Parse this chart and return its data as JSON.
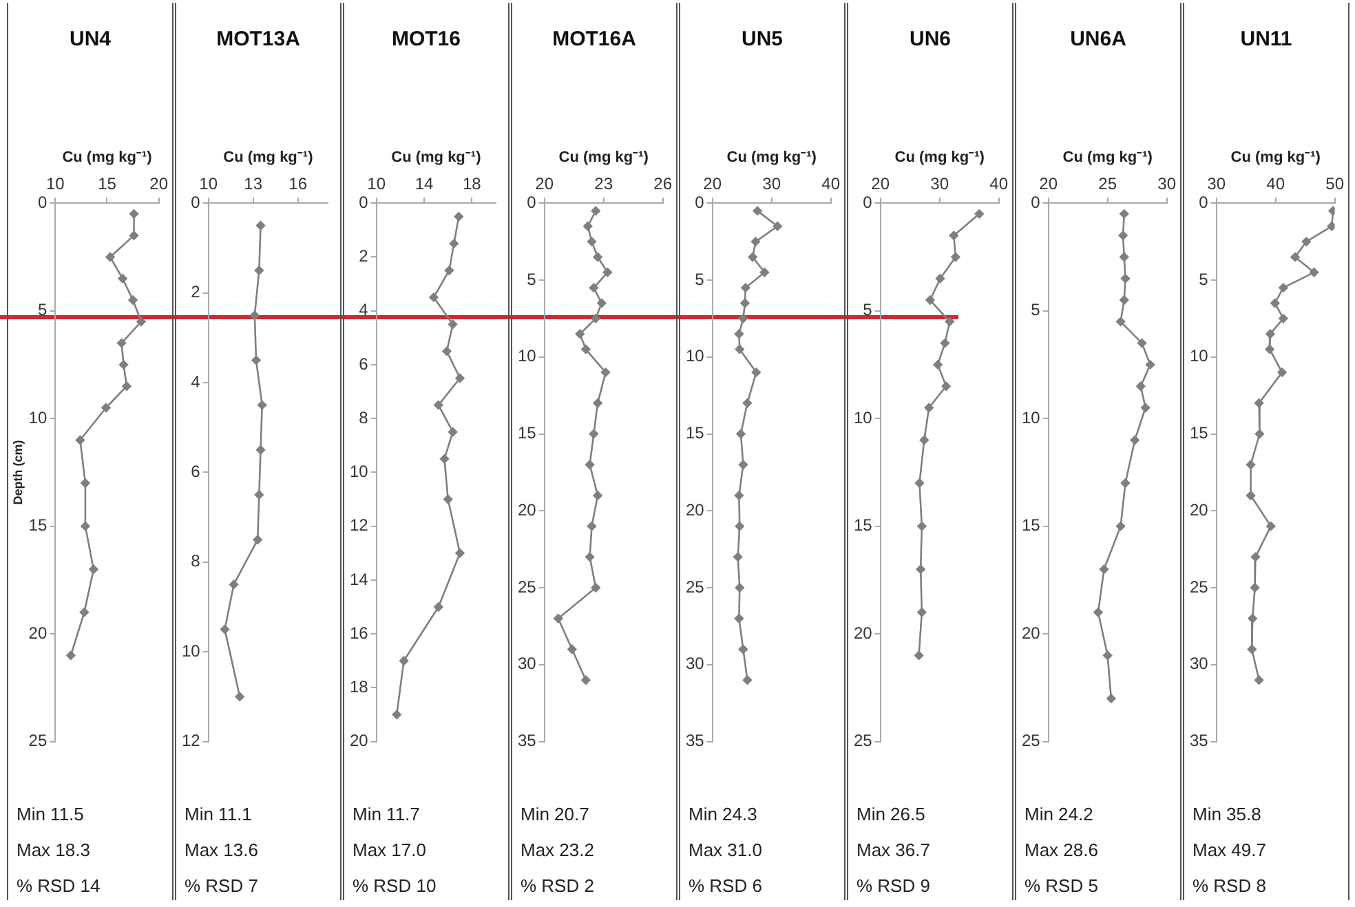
{
  "chart_data": [
    {
      "type": "line",
      "title": "UN4",
      "xlabel": "Cu (mg kg⁻¹)",
      "ylabel": "Depth (cm)",
      "marker": "diamond",
      "grid": false,
      "xlim": [
        10,
        20
      ],
      "xticks": [
        10,
        15,
        20
      ],
      "ylim": [
        25,
        0
      ],
      "yticks": [
        0,
        5,
        10,
        15,
        20,
        25
      ],
      "series": [
        {
          "color": "#7f7f7f",
          "x": [
            17.6,
            17.6,
            15.3,
            16.5,
            17.5,
            18.3,
            16.4,
            16.6,
            16.9,
            14.9,
            12.4,
            12.9,
            12.9,
            13.7,
            12.8,
            11.5
          ],
          "values": [
            0.5,
            1.5,
            2.5,
            3.5,
            4.5,
            5.5,
            6.5,
            7.5,
            8.5,
            9.5,
            11,
            13,
            15,
            17,
            19,
            21
          ]
        }
      ],
      "annotations": [
        "Min 11.5",
        "Max 18.3",
        "% RSD 14"
      ]
    },
    {
      "type": "line",
      "title": "MOT13A",
      "xlabel": "Cu (mg kg⁻¹)",
      "marker": "diamond",
      "grid": false,
      "xlim": [
        10,
        18
      ],
      "xticks": [
        10,
        13,
        16
      ],
      "ylim": [
        12,
        0
      ],
      "yticks": [
        0,
        2,
        4,
        6,
        8,
        10,
        12
      ],
      "series": [
        {
          "color": "#7f7f7f",
          "x": [
            13.5,
            13.4,
            13.1,
            13.2,
            13.6,
            13.5,
            13.4,
            13.3,
            11.7,
            11.1,
            12.1
          ],
          "values": [
            0.5,
            1.5,
            2.5,
            3.5,
            4.5,
            5.5,
            6.5,
            7.5,
            8.5,
            9.5,
            11
          ]
        }
      ],
      "annotations": [
        "Min 11.1",
        "Max 13.6",
        "% RSD 7"
      ]
    },
    {
      "type": "line",
      "title": "MOT16",
      "xlabel": "Cu (mg kg⁻¹)",
      "marker": "diamond",
      "grid": false,
      "xlim": [
        10,
        20
      ],
      "xticks": [
        10,
        14,
        18
      ],
      "ylim": [
        20,
        0
      ],
      "yticks": [
        0,
        2,
        4,
        6,
        8,
        10,
        12,
        14,
        16,
        18,
        20
      ],
      "series": [
        {
          "color": "#7f7f7f",
          "x": [
            16.9,
            16.5,
            16.1,
            14.8,
            16.4,
            15.9,
            17.0,
            15.2,
            16.4,
            15.7,
            16.0,
            17.0,
            15.2,
            12.3,
            11.7
          ],
          "values": [
            0.5,
            1.5,
            2.5,
            3.5,
            4.5,
            5.5,
            6.5,
            7.5,
            8.5,
            9.5,
            11,
            13,
            15,
            17,
            19
          ]
        }
      ],
      "annotations": [
        "Min 11.7",
        "Max 17.0",
        "% RSD 10"
      ]
    },
    {
      "type": "line",
      "title": "MOT16A",
      "xlabel": "Cu (mg kg⁻¹)",
      "marker": "diamond",
      "grid": false,
      "xlim": [
        20,
        26
      ],
      "xticks": [
        20,
        23,
        26
      ],
      "ylim": [
        35,
        0
      ],
      "yticks": [
        0,
        5,
        10,
        15,
        20,
        25,
        30,
        35
      ],
      "series": [
        {
          "color": "#7f7f7f",
          "x": [
            22.6,
            22.2,
            22.4,
            22.7,
            23.2,
            22.5,
            22.9,
            22.6,
            21.8,
            22.1,
            23.1,
            22.7,
            22.5,
            22.3,
            22.7,
            22.4,
            22.3,
            22.6,
            20.7,
            21.4,
            22.1
          ],
          "values": [
            0.5,
            1.5,
            2.5,
            3.5,
            4.5,
            5.5,
            6.5,
            7.5,
            8.5,
            9.5,
            11,
            13,
            15,
            17,
            19,
            21,
            23,
            25,
            27,
            29,
            31
          ]
        }
      ],
      "annotations": [
        "Min 20.7",
        "Max 23.2",
        "% RSD 2"
      ]
    },
    {
      "type": "line",
      "title": "UN5",
      "xlabel": "Cu (mg kg⁻¹)",
      "marker": "diamond",
      "grid": false,
      "xlim": [
        20,
        40
      ],
      "xticks": [
        20,
        30,
        40
      ],
      "ylim": [
        35,
        0
      ],
      "yticks": [
        0,
        5,
        10,
        15,
        20,
        25,
        30,
        35
      ],
      "series": [
        {
          "color": "#7f7f7f",
          "x": [
            27.6,
            31.0,
            27.3,
            26.8,
            28.8,
            25.6,
            25.5,
            25.2,
            24.5,
            24.6,
            27.4,
            25.9,
            24.8,
            25.2,
            24.5,
            24.6,
            24.3,
            24.6,
            24.5,
            25.2,
            25.9
          ],
          "values": [
            0.5,
            1.5,
            2.5,
            3.5,
            4.5,
            5.5,
            6.5,
            7.5,
            8.5,
            9.5,
            11,
            13,
            15,
            17,
            19,
            21,
            23,
            25,
            27,
            29,
            31
          ]
        }
      ],
      "annotations": [
        "Min 24.3",
        "Max 31.0",
        "% RSD 6"
      ]
    },
    {
      "type": "line",
      "title": "UN6",
      "xlabel": "Cu (mg kg⁻¹)",
      "marker": "diamond",
      "grid": false,
      "xlim": [
        20,
        40
      ],
      "xticks": [
        20,
        30,
        40
      ],
      "ylim": [
        25,
        0
      ],
      "yticks": [
        0,
        5,
        10,
        15,
        20,
        25
      ],
      "series": [
        {
          "color": "#7f7f7f",
          "x": [
            36.7,
            32.4,
            32.7,
            30.1,
            28.4,
            31.7,
            30.9,
            29.7,
            31.1,
            28.2,
            27.4,
            26.6,
            27.0,
            26.8,
            27.0,
            26.5
          ],
          "values": [
            0.5,
            1.5,
            2.5,
            3.5,
            4.5,
            5.5,
            6.5,
            7.5,
            8.5,
            9.5,
            11,
            13,
            15,
            17,
            19,
            21
          ]
        }
      ],
      "annotations": [
        "Min 26.5",
        "Max 36.7",
        "% RSD 9"
      ]
    },
    {
      "type": "line",
      "title": "UN6A",
      "xlabel": "Cu (mg kg⁻¹)",
      "marker": "diamond",
      "grid": false,
      "xlim": [
        20,
        30
      ],
      "xticks": [
        20,
        25,
        30
      ],
      "ylim": [
        25,
        0
      ],
      "yticks": [
        0,
        5,
        10,
        15,
        20,
        25
      ],
      "series": [
        {
          "color": "#7f7f7f",
          "x": [
            26.4,
            26.3,
            26.4,
            26.5,
            26.4,
            26.1,
            27.9,
            28.6,
            27.8,
            28.2,
            27.3,
            26.5,
            26.1,
            24.7,
            24.2,
            25.0,
            25.3
          ],
          "values": [
            0.5,
            1.5,
            2.5,
            3.5,
            4.5,
            5.5,
            6.5,
            7.5,
            8.5,
            9.5,
            11,
            13,
            15,
            17,
            19,
            21,
            23
          ]
        }
      ],
      "annotations": [
        "Min 24.2",
        "Max 28.6",
        "% RSD 5"
      ]
    },
    {
      "type": "line",
      "title": "UN11",
      "xlabel": "Cu (mg kg⁻¹)",
      "marker": "diamond",
      "grid": false,
      "xlim": [
        30,
        50
      ],
      "xticks": [
        30,
        40,
        50
      ],
      "ylim": [
        35,
        0
      ],
      "yticks": [
        0,
        5,
        10,
        15,
        20,
        25,
        30,
        35
      ],
      "series": [
        {
          "color": "#7f7f7f",
          "x": [
            49.7,
            49.5,
            45.2,
            43.3,
            46.5,
            41.3,
            39.9,
            41.3,
            39.1,
            39.0,
            41.1,
            37.2,
            37.3,
            35.8,
            35.8,
            39.2,
            36.6,
            36.5,
            36.1,
            36.0,
            37.2
          ],
          "values": [
            0.5,
            1.5,
            2.5,
            3.5,
            4.5,
            5.5,
            6.5,
            7.5,
            8.5,
            9.5,
            11,
            13,
            15,
            17,
            19,
            21,
            23,
            25,
            27,
            29,
            31
          ]
        }
      ],
      "annotations": [
        "Min 35.8",
        "Max 49.7",
        "% RSD 8"
      ]
    }
  ]
}
